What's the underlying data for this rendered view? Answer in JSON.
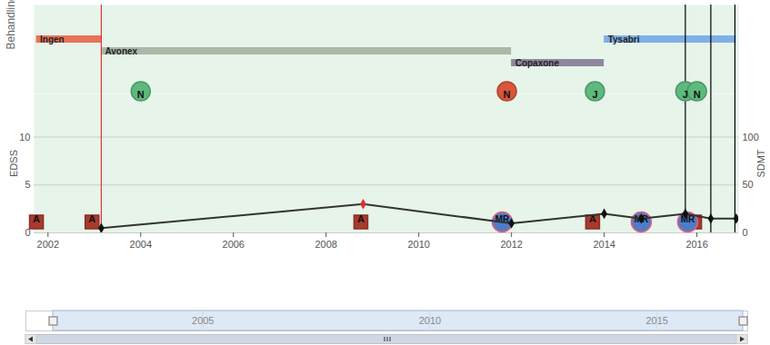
{
  "chart_data": {
    "type": "timeline",
    "xlim": [
      2001.7,
      2016.9
    ],
    "xticks": [
      2002,
      2004,
      2006,
      2008,
      2010,
      2012,
      2014,
      2016
    ],
    "treatment_label": "Behandling",
    "treatments": [
      {
        "name": "Ingen",
        "start": 2001.75,
        "end": 2003.15,
        "color": "#e8735a"
      },
      {
        "name": "Avonex",
        "start": 2003.15,
        "end": 2012.0,
        "color": "#a9b8a8"
      },
      {
        "name": "Copaxone",
        "start": 2012.0,
        "end": 2014.0,
        "color": "#8f879f"
      },
      {
        "name": "Tysabri",
        "start": 2014.0,
        "end": 2016.85,
        "color": "#7eb0e8"
      }
    ],
    "y_label": "EDSS",
    "ylim": [
      0,
      14.5
    ],
    "yticks": [
      0,
      5,
      10
    ],
    "y2_label": "SDMT",
    "y2lim": [
      0,
      145
    ],
    "y2ticks": [
      0,
      50,
      100
    ],
    "grid": true,
    "series": [
      {
        "type": "line",
        "color": "#333333",
        "marker": "diamond",
        "x": [
          2003.15,
          2008.8,
          2012.0,
          2014.0,
          2014.8,
          2015.75,
          2016.3,
          2016.85
        ],
        "values": [
          0.5,
          3.0,
          1.0,
          2.0,
          1.5,
          2.0,
          1.5,
          1.5
        ],
        "colors": [
          "#111111",
          "#d93030",
          "#111111",
          "#111111",
          "#111111",
          "#111111",
          "#111111",
          "#111111"
        ]
      }
    ],
    "top_markers": [
      {
        "x": 2004.0,
        "label": "N",
        "color": "#5dba7d"
      },
      {
        "x": 2011.9,
        "label": "N",
        "color": "#d9553b"
      },
      {
        "x": 2013.8,
        "label": "J",
        "color": "#5dba7d"
      },
      {
        "x": 2015.75,
        "label": "J",
        "color": "#5dba7d"
      },
      {
        "x": 2016.0,
        "label": "N",
        "color": "#5dba7d"
      }
    ],
    "bottom_markers": [
      {
        "x": 2001.75,
        "label": "A",
        "color": "#a93a2f",
        "marker": "square"
      },
      {
        "x": 2002.95,
        "label": "A",
        "color": "#a93a2f",
        "marker": "square"
      },
      {
        "x": 2008.75,
        "label": "A",
        "color": "#a93a2f",
        "marker": "square"
      },
      {
        "x": 2013.75,
        "label": "A",
        "color": "#a93a2f",
        "marker": "square"
      },
      {
        "x": 2015.95,
        "label": "A",
        "color": "#a93a2f",
        "marker": "square"
      },
      {
        "x": 2011.8,
        "label": "MR",
        "color": "#4f7cc8",
        "marker": "circle"
      },
      {
        "x": 2014.8,
        "label": "MR",
        "color": "#4f7cc8",
        "marker": "circle"
      },
      {
        "x": 2015.8,
        "label": "MR",
        "color": "#4f7cc8",
        "marker": "circle"
      }
    ],
    "vlines": [
      {
        "x": 2003.15,
        "color": "#e03030",
        "line_style": "dashdot"
      },
      {
        "x": 2015.75,
        "color": "#000000",
        "line_style": "dashed"
      },
      {
        "x": 2016.3,
        "color": "#000000",
        "line_style": "dashed"
      },
      {
        "x": 2016.82,
        "color": "#000000",
        "line_style": "dashed"
      }
    ],
    "navigator": {
      "xlim": [
        2001.1,
        2017.0
      ],
      "xticks": [
        2005,
        2010,
        2015
      ],
      "selection": [
        2001.7,
        2016.9
      ]
    }
  }
}
